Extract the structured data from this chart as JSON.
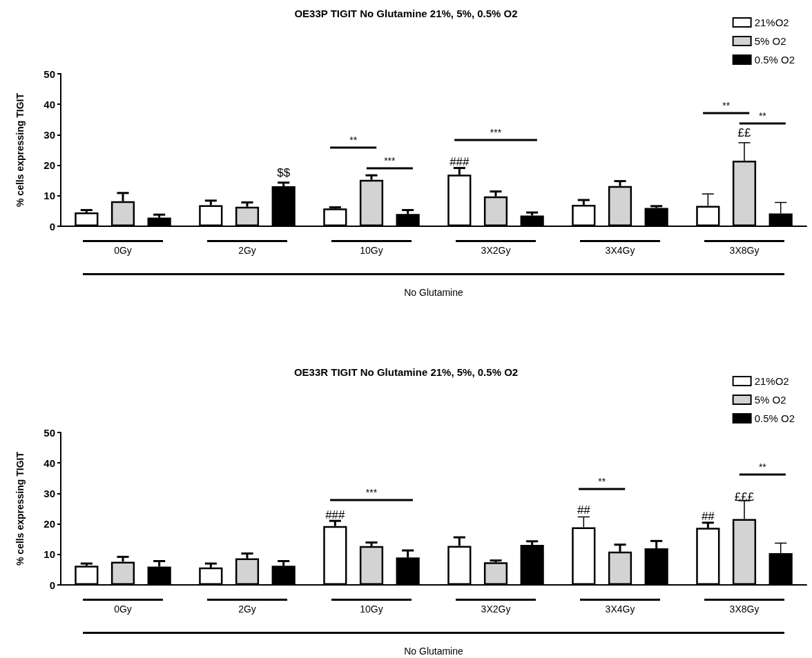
{
  "chart_data": [
    {
      "type": "bar",
      "title": "OE33P TIGIT No Glutamine 21%, 5%, 0.5% O2",
      "xlabel": "No Glutamine",
      "ylabel": "% cells expressing TIGIT",
      "categories": [
        "0Gy",
        "2Gy",
        "10Gy",
        "3X2Gy",
        "3X4Gy",
        "3X8Gy"
      ],
      "series": [
        {
          "name": "21%O2",
          "color": "#ffffff",
          "values": [
            4.5,
            6.9,
            5.8,
            16.9,
            7.0,
            6.7
          ],
          "errors": [
            0.8,
            1.5,
            0.4,
            2.2,
            1.6,
            3.9
          ]
        },
        {
          "name": "5% O2",
          "color": "#d3d3d3",
          "values": [
            8.2,
            6.4,
            15.2,
            9.8,
            13.2,
            21.5
          ],
          "errors": [
            2.7,
            1.4,
            1.5,
            1.6,
            1.6,
            5.9
          ]
        },
        {
          "name": "0.5% O2",
          "color": "#000000",
          "values": [
            2.8,
            13.1,
            4.0,
            3.5,
            6.0,
            4.2
          ],
          "errors": [
            1.0,
            1.2,
            1.3,
            1.0,
            0.6,
            3.6
          ]
        }
      ],
      "ylim": [
        0,
        50
      ],
      "yticks": [
        0,
        10,
        20,
        30,
        40,
        50
      ],
      "legend": "top right",
      "annotations": [
        "$$",
        "**",
        "***",
        "###",
        "***",
        "**",
        "**",
        "££"
      ]
    },
    {
      "type": "bar",
      "title": "OE33R TIGIT No Glutamine 21%, 5%, 0.5% O2",
      "xlabel": "No Glutamine",
      "ylabel": "% cells expressing TIGIT",
      "categories": [
        "0Gy",
        "2Gy",
        "10Gy",
        "3X2Gy",
        "3X4Gy",
        "3X8Gy"
      ],
      "series": [
        {
          "name": "21%O2",
          "color": "#ffffff",
          "values": [
            6.3,
            5.7,
            19.3,
            12.8,
            18.9,
            18.7
          ],
          "errors": [
            0.7,
            1.3,
            1.7,
            2.8,
            3.4,
            1.7
          ]
        },
        {
          "name": "5% O2",
          "color": "#d3d3d3",
          "values": [
            7.6,
            8.7,
            12.7,
            7.4,
            10.9,
            21.6
          ],
          "errors": [
            1.6,
            1.6,
            1.2,
            0.6,
            2.3,
            6.0
          ]
        },
        {
          "name": "0.5% O2",
          "color": "#000000",
          "values": [
            6.0,
            6.3,
            9.0,
            13.1,
            12.0,
            10.4
          ],
          "errors": [
            1.8,
            1.5,
            2.3,
            1.2,
            2.4,
            3.3
          ]
        }
      ],
      "ylim": [
        0,
        50
      ],
      "yticks": [
        0,
        10,
        20,
        30,
        40,
        50
      ],
      "legend": "top right",
      "annotations": [
        "***",
        "###",
        "##",
        "**",
        "##",
        "£££",
        "**"
      ]
    }
  ]
}
